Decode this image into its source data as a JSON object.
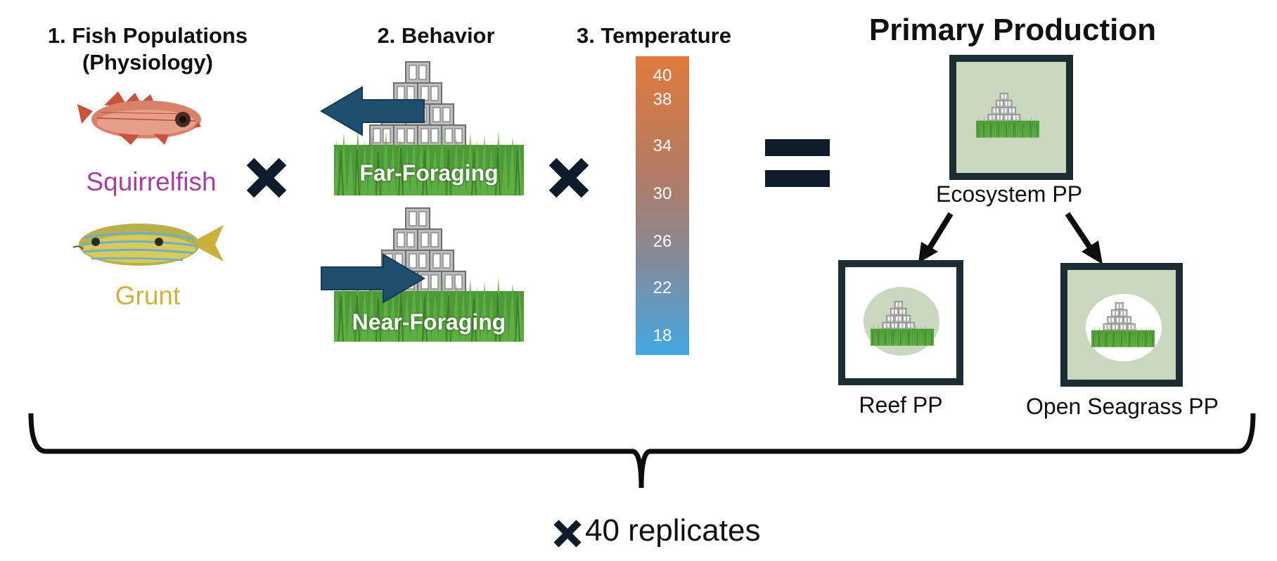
{
  "headers": {
    "fish_line1": "1. Fish Populations",
    "fish_line2": "(Physiology)",
    "behavior": "2. Behavior",
    "temperature": "3. Temperature",
    "production": "Primary Production"
  },
  "species": [
    {
      "name": "Squirrelfish",
      "color": "#a63fa0"
    },
    {
      "name": "Grunt",
      "color": "#d4b23a"
    }
  ],
  "behaviors": [
    {
      "label": "Far-Foraging",
      "direction": "away"
    },
    {
      "label": "Near-Foraging",
      "direction": "toward"
    }
  ],
  "temperature_scale": {
    "ticks": [
      "40",
      "38",
      "34",
      "30",
      "26",
      "22",
      "18"
    ],
    "color_top": "#e07a3c",
    "color_bottom": "#42a7e3"
  },
  "production": {
    "ecosystem": "Ecosystem PP",
    "reef": "Reef PP",
    "seagrass": "Open Seagrass PP"
  },
  "footer": {
    "replicates": "40 replicates"
  },
  "colors": {
    "arrow_fill": "#1f4e6e",
    "frame": "#1c2d33",
    "panel_fill": "#c9d8be",
    "grass": "#4f9a38",
    "operator": "#0d1b2a"
  },
  "icons": [
    "squirrelfish-icon",
    "grunt-icon",
    "reef-block-icon",
    "seagrass-icon",
    "multiply-icon",
    "equals-icon",
    "brace-icon"
  ]
}
